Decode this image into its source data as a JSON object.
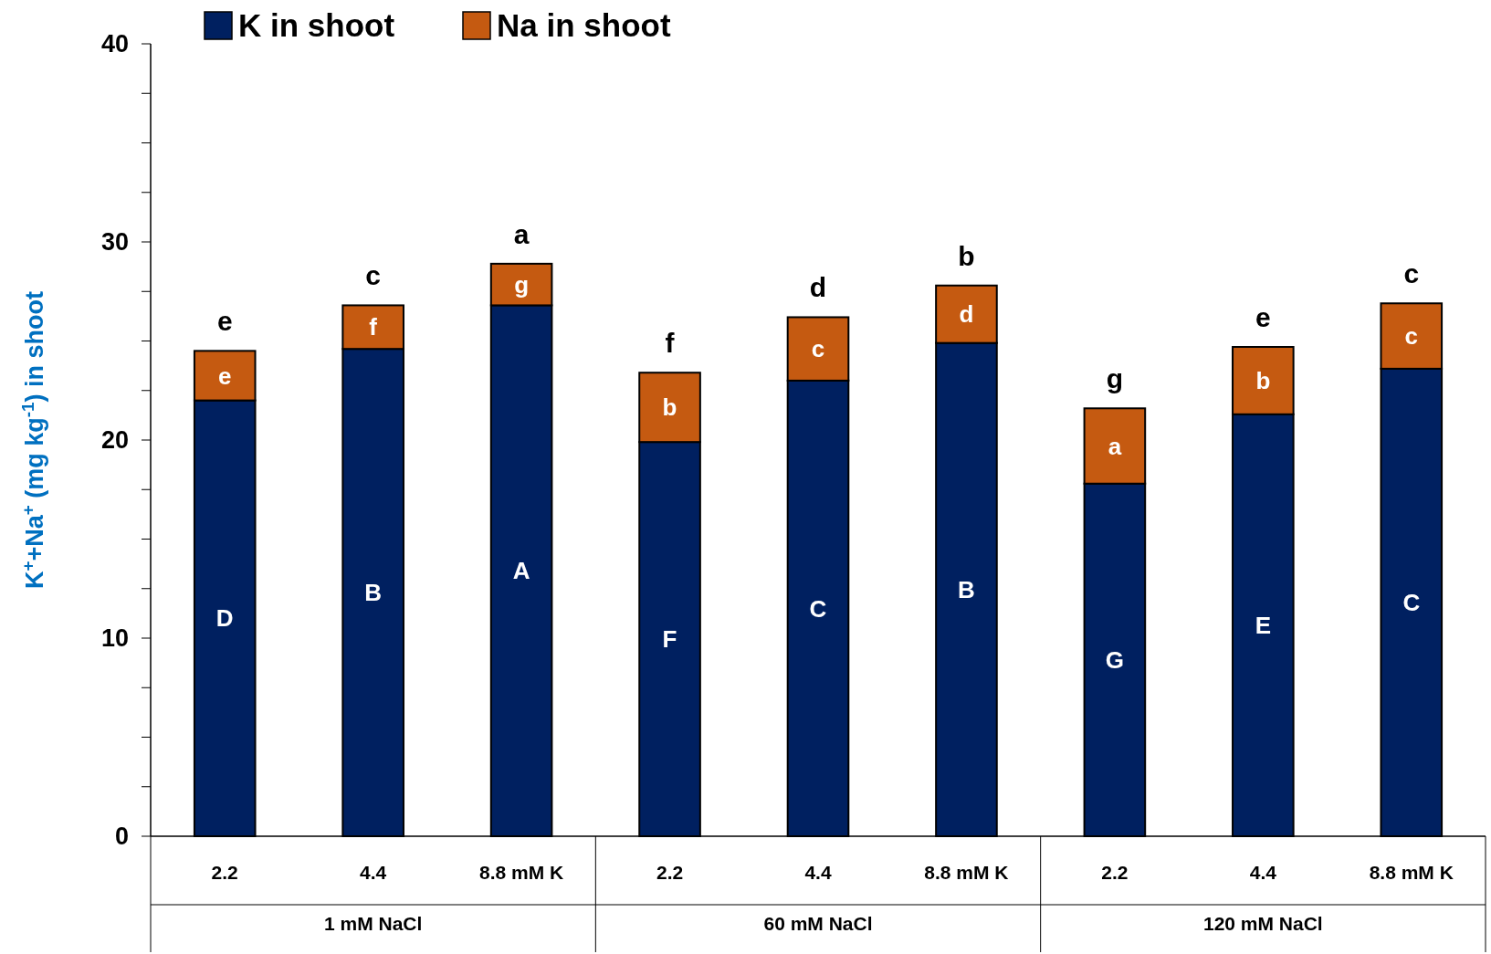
{
  "chart_data": {
    "type": "bar",
    "stacked": true,
    "ylabel": "K$^{+}$+Na$^{+}$ (mg kg$^{-1}$)  in shoot",
    "categories": [
      "2.2",
      "4.4",
      "8.8 mM K",
      "2.2",
      "4.4",
      "8.8 mM K",
      "2.2",
      "4.4",
      "8.8 mM K"
    ],
    "series": [
      {
        "name": "K in shoot",
        "color": "#002060",
        "values": [
          22.0,
          24.6,
          26.8,
          19.9,
          23.0,
          24.9,
          17.8,
          21.3,
          23.6
        ],
        "value_labels": [
          "D",
          "B",
          "A",
          "F",
          "C",
          "B",
          "G",
          "E",
          "C"
        ]
      },
      {
        "name": "Na in shoot",
        "color": "#c55a11",
        "values": [
          2.5,
          2.2,
          2.1,
          3.5,
          3.2,
          2.9,
          3.8,
          3.4,
          3.3
        ],
        "value_labels": [
          "e",
          "f",
          "g",
          "b",
          "c",
          "d",
          "a",
          "b",
          "c"
        ]
      }
    ],
    "totals": [
      "e",
      "c",
      "a",
      "f",
      "d",
      "b",
      "g",
      "e",
      "c"
    ],
    "annotations": [
      "1 mM  NaCl",
      "60 mM NaCl",
      "120 mM NaCl"
    ],
    "ylim": [
      0,
      40
    ],
    "yticks": [
      0,
      {
        "value": 2.5,
        "label": null
      },
      {
        "value": 5,
        "label": null
      },
      {
        "value": 7.5,
        "label": null
      },
      10,
      {
        "value": 12.5,
        "label": null
      },
      {
        "value": 15,
        "label": null
      },
      {
        "value": 17.5,
        "label": null
      },
      20,
      {
        "value": 22.5,
        "label": null
      },
      {
        "value": 25,
        "label": null
      },
      {
        "value": 27.5,
        "label": null
      },
      30,
      {
        "value": 32.5,
        "label": null
      },
      {
        "value": 35,
        "label": null
      },
      {
        "value": 37.5,
        "label": null
      },
      40
    ],
    "grid": false,
    "legend": "top left"
  }
}
